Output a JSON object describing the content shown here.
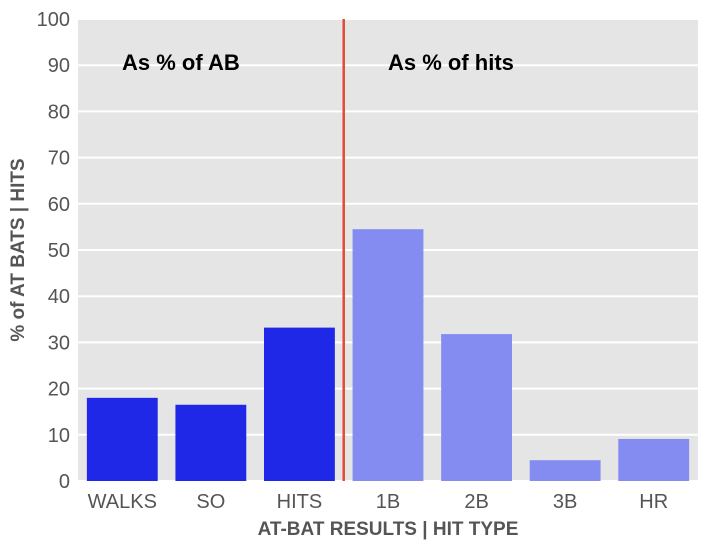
{
  "chart_data": {
    "type": "bar",
    "categories": [
      "WALKS",
      "SO",
      "HITS",
      "1B",
      "2B",
      "3B",
      "HR"
    ],
    "values": [
      18,
      16.5,
      33.2,
      54.5,
      31.8,
      4.5,
      9.1
    ],
    "bar_colors": [
      "#1f28e6",
      "#1f28e6",
      "#1f28e6",
      "#848cf2",
      "#848cf2",
      "#848cf2",
      "#848cf2"
    ],
    "xlabel": "AT-BAT RESULTS | HIT TYPE",
    "ylabel": "% of AT BATS | HITS",
    "ylim": [
      0,
      100
    ],
    "yticks": [
      "0",
      "10",
      "20",
      "30",
      "40",
      "50",
      "60",
      "70",
      "80",
      "90",
      "100"
    ],
    "annotations": [
      "As % of AB",
      "As % of hits"
    ],
    "divider_after_category": "HITS",
    "divider_color": "#e24a33",
    "plot_background": "#e5e5e5",
    "grid": true
  }
}
